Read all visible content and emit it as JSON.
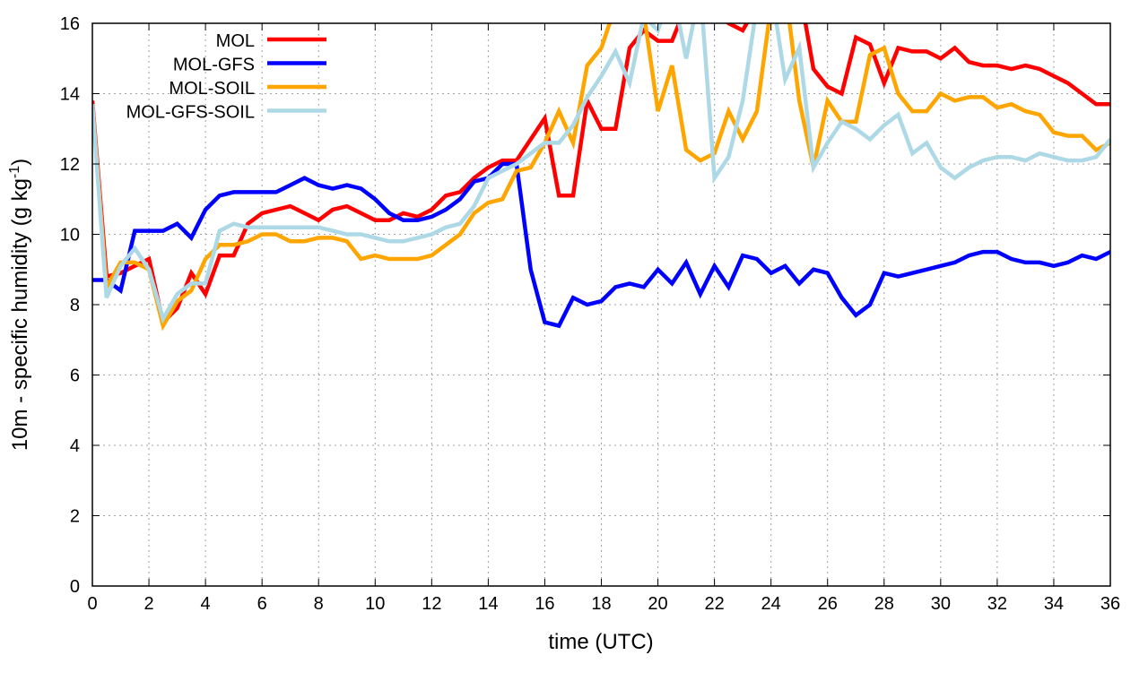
{
  "chart_data": {
    "type": "line",
    "title": "",
    "xlabel": "time (UTC)",
    "ylabel": "10m - specific humidity (g kg",
    "ylabel_sup": "-1",
    "ylabel_close": ")",
    "xlim": [
      0,
      36
    ],
    "ylim": [
      0,
      16
    ],
    "xticks": [
      0,
      2,
      4,
      6,
      8,
      10,
      12,
      14,
      16,
      18,
      20,
      22,
      24,
      26,
      28,
      30,
      32,
      34,
      36
    ],
    "yticks": [
      0,
      2,
      4,
      6,
      8,
      10,
      12,
      14,
      16
    ],
    "grid": true,
    "legend_placement": "top-left",
    "x": [
      0,
      0.5,
      1,
      1.5,
      2,
      2.5,
      3,
      3.5,
      4,
      4.5,
      5,
      5.5,
      6,
      6.5,
      7,
      7.5,
      8,
      8.5,
      9,
      9.5,
      10,
      10.5,
      11,
      11.5,
      12,
      12.5,
      13,
      13.5,
      14,
      14.5,
      15,
      15.5,
      16,
      16.5,
      17,
      17.5,
      18,
      18.5,
      19,
      19.5,
      20,
      20.5,
      21,
      21.5,
      22,
      22.5,
      23,
      23.5,
      24,
      24.5,
      25,
      25.5,
      26,
      26.5,
      27,
      27.5,
      28,
      28.5,
      29,
      29.5,
      30,
      30.5,
      31,
      31.5,
      32,
      32.5,
      33,
      33.5,
      34,
      34.5,
      35,
      35.5,
      36
    ],
    "series": [
      {
        "name": "MOL",
        "color": "#ff0000",
        "values": [
          13.8,
          8.8,
          8.9,
          9.1,
          9.3,
          7.5,
          7.9,
          8.9,
          8.3,
          9.4,
          9.4,
          10.3,
          10.6,
          10.7,
          10.8,
          10.6,
          10.4,
          10.7,
          10.8,
          10.6,
          10.4,
          10.4,
          10.6,
          10.5,
          10.7,
          11.1,
          11.2,
          11.6,
          11.9,
          12.1,
          12.1,
          12.7,
          13.3,
          11.1,
          11.1,
          13.8,
          13.0,
          13.0,
          15.3,
          15.8,
          15.5,
          15.5,
          16.5,
          17,
          16.5,
          16,
          15.8,
          16.5,
          17,
          17,
          17,
          14.7,
          14.2,
          14.0,
          15.6,
          15.4,
          14.3,
          15.3,
          15.2,
          15.2,
          15.0,
          15.3,
          14.9,
          14.8,
          14.8,
          14.7,
          14.8,
          14.7,
          14.5,
          14.3,
          14.0,
          13.7,
          13.7
        ]
      },
      {
        "name": "MOL-GFS",
        "color": "#0000ff",
        "values": [
          8.7,
          8.7,
          8.4,
          10.1,
          10.1,
          10.1,
          10.3,
          9.9,
          10.7,
          11.1,
          11.2,
          11.2,
          11.2,
          11.2,
          11.4,
          11.6,
          11.4,
          11.3,
          11.4,
          11.3,
          11.0,
          10.6,
          10.4,
          10.4,
          10.5,
          10.7,
          11.0,
          11.5,
          11.6,
          12.0,
          12.0,
          9.0,
          7.5,
          7.4,
          8.2,
          8.0,
          8.1,
          8.5,
          8.6,
          8.5,
          9.0,
          8.6,
          9.2,
          8.3,
          9.1,
          8.5,
          9.4,
          9.3,
          8.9,
          9.1,
          8.6,
          9.0,
          8.9,
          8.2,
          7.7,
          8.0,
          8.9,
          8.8,
          8.9,
          9.0,
          9.1,
          9.2,
          9.4,
          9.5,
          9.5,
          9.3,
          9.2,
          9.2,
          9.1,
          9.2,
          9.4,
          9.3,
          9.5
        ]
      },
      {
        "name": "MOL-SOIL",
        "color": "#ffa500",
        "values": [
          13.7,
          8.5,
          9.2,
          9.2,
          9.0,
          7.4,
          8.1,
          8.4,
          9.3,
          9.7,
          9.7,
          9.8,
          10.0,
          10.0,
          9.8,
          9.8,
          9.9,
          9.9,
          9.8,
          9.3,
          9.4,
          9.3,
          9.3,
          9.3,
          9.4,
          9.7,
          10.0,
          10.6,
          10.9,
          11.0,
          11.8,
          11.9,
          12.6,
          13.5,
          12.6,
          14.8,
          15.3,
          16.5,
          17,
          16.3,
          13.5,
          14.8,
          12.4,
          12.1,
          12.3,
          13.5,
          12.7,
          13.5,
          16.5,
          17,
          13.8,
          11.9,
          13.8,
          13.2,
          13.2,
          15.1,
          15.3,
          14.0,
          13.5,
          13.5,
          14.0,
          13.8,
          13.9,
          13.9,
          13.6,
          13.7,
          13.5,
          13.4,
          12.9,
          12.8,
          12.8,
          12.4,
          12.6
        ]
      },
      {
        "name": "MOL-GFS-SOIL",
        "color": "#add8e6",
        "values": [
          13.7,
          8.2,
          9.1,
          9.6,
          9.0,
          7.6,
          8.3,
          8.6,
          8.6,
          10.1,
          10.3,
          10.2,
          10.2,
          10.2,
          10.2,
          10.2,
          10.2,
          10.1,
          10.0,
          10.0,
          9.9,
          9.8,
          9.8,
          9.9,
          10.0,
          10.2,
          10.3,
          10.8,
          11.6,
          11.8,
          12.0,
          12.3,
          12.6,
          12.6,
          13.1,
          13.9,
          14.5,
          15.2,
          14.3,
          16.2,
          15.8,
          17,
          15.0,
          17,
          11.6,
          12.2,
          13.8,
          16.5,
          17,
          14.4,
          15.3,
          11.9,
          12.6,
          13.2,
          13.0,
          12.7,
          13.1,
          13.4,
          12.3,
          12.6,
          11.9,
          11.6,
          11.9,
          12.1,
          12.2,
          12.2,
          12.1,
          12.3,
          12.2,
          12.1,
          12.1,
          12.2,
          12.7
        ]
      }
    ]
  }
}
